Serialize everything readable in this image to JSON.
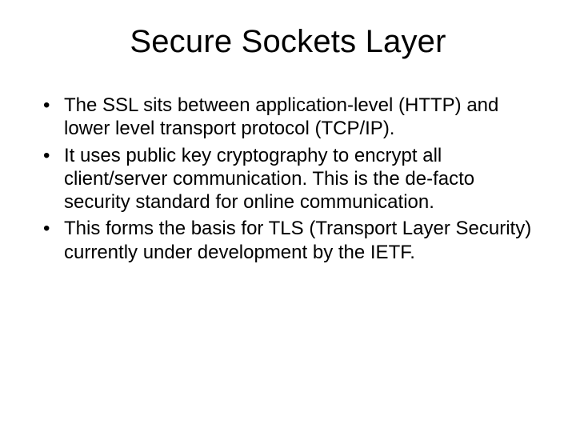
{
  "slide": {
    "title": "Secure Sockets Layer",
    "bullets": [
      "The SSL sits between application-level (HTTP) and lower level transport protocol (TCP/IP).",
      "It uses public key cryptography to encrypt all client/server communication.  This is the de-facto security standard for online communication.",
      "This forms the basis for TLS (Transport Layer Security) currently under development by the IETF."
    ],
    "title_fontsize": 40,
    "body_fontsize": 24,
    "text_color": "#000000",
    "background_color": "#ffffff"
  }
}
